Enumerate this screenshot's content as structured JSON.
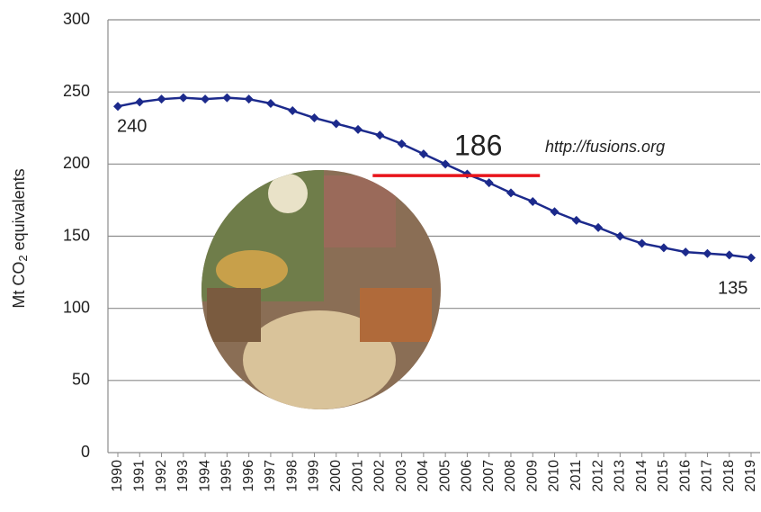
{
  "chart_data": {
    "type": "line",
    "y_label": {
      "text": "Mt CO",
      "subscript": "2",
      "suffix": " equivalents"
    },
    "categories": [
      "1990",
      "1991",
      "1992",
      "1993",
      "1994",
      "1995",
      "1996",
      "1997",
      "1998",
      "1999",
      "2000",
      "2001",
      "2002",
      "2003",
      "2004",
      "2005",
      "2006",
      "2007",
      "2008",
      "2009",
      "2010",
      "2011",
      "2012",
      "2013",
      "2014",
      "2015",
      "2016",
      "2017",
      "2018",
      "2019"
    ],
    "series": [
      {
        "color": "#1c2a8c",
        "values": [
          240,
          243,
          245,
          246,
          245,
          246,
          245,
          242,
          237,
          232,
          228,
          224,
          220,
          214,
          207,
          200,
          193,
          187,
          180,
          174,
          167,
          161,
          156,
          150,
          145,
          142,
          139,
          138,
          137,
          135
        ]
      }
    ],
    "ylim": [
      0,
      300
    ],
    "yticks": [
      0,
      50,
      100,
      150,
      200,
      250,
      300
    ],
    "grid": true,
    "reference_line": {
      "value": 192,
      "from": "2002",
      "to": "2009",
      "color": "#e8141b"
    },
    "annotations": [
      "240",
      "135",
      "186",
      "http://fusions.org"
    ]
  }
}
